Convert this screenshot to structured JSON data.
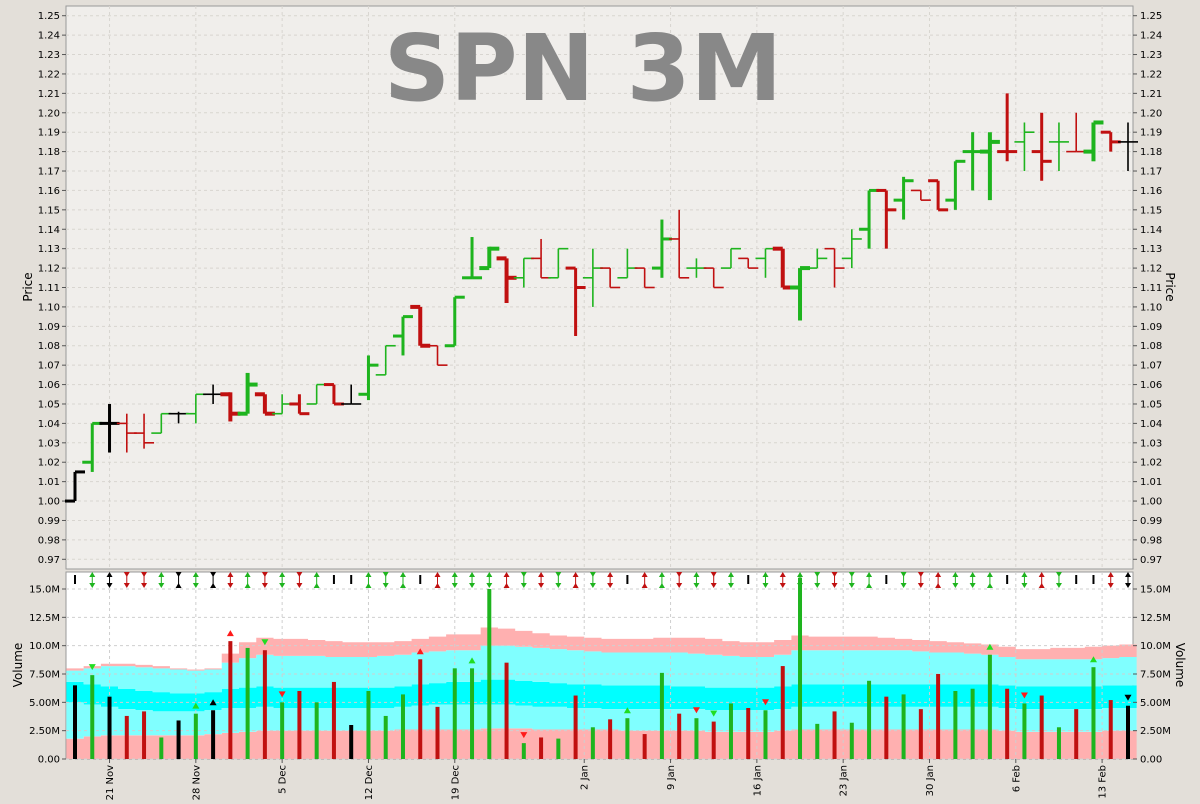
{
  "chart_data": [
    {
      "type": "ohlc",
      "title": "SPN 3M",
      "ylabel": "Price",
      "ylim": [
        0.965,
        1.255
      ],
      "yticks": [
        0.97,
        0.98,
        0.99,
        1.0,
        1.01,
        1.02,
        1.03,
        1.04,
        1.05,
        1.06,
        1.07,
        1.08,
        1.09,
        1.1,
        1.11,
        1.12,
        1.13,
        1.14,
        1.15,
        1.16,
        1.17,
        1.18,
        1.19,
        1.2,
        1.21,
        1.22,
        1.23,
        1.24,
        1.25
      ],
      "grid": true,
      "series": [
        {
          "date": "2008-11-17",
          "o": 1.0,
          "h": 1.015,
          "l": 1.0,
          "c": 1.015,
          "dir": "flat"
        },
        {
          "date": "2008-11-18",
          "o": 1.02,
          "h": 1.04,
          "l": 1.015,
          "c": 1.04,
          "dir": "up"
        },
        {
          "date": "2008-11-19",
          "o": 1.04,
          "h": 1.05,
          "l": 1.025,
          "c": 1.04,
          "dir": "flat"
        },
        {
          "date": "2008-11-20",
          "o": 1.04,
          "h": 1.045,
          "l": 1.025,
          "c": 1.035,
          "dir": "down"
        },
        {
          "date": "2008-11-21",
          "o": 1.035,
          "h": 1.045,
          "l": 1.027,
          "c": 1.03,
          "dir": "down"
        },
        {
          "date": "2008-11-24",
          "o": 1.035,
          "h": 1.045,
          "l": 1.035,
          "c": 1.045,
          "dir": "up"
        },
        {
          "date": "2008-11-25",
          "o": 1.045,
          "h": 1.046,
          "l": 1.04,
          "c": 1.045,
          "dir": "flat"
        },
        {
          "date": "2008-11-26",
          "o": 1.045,
          "h": 1.055,
          "l": 1.04,
          "c": 1.055,
          "dir": "up"
        },
        {
          "date": "2008-11-27",
          "o": 1.055,
          "h": 1.06,
          "l": 1.05,
          "c": 1.055,
          "dir": "flat"
        },
        {
          "date": "2008-11-28",
          "o": 1.055,
          "h": 1.056,
          "l": 1.041,
          "c": 1.045,
          "dir": "down"
        },
        {
          "date": "2008-12-01",
          "o": 1.045,
          "h": 1.066,
          "l": 1.045,
          "c": 1.06,
          "dir": "up"
        },
        {
          "date": "2008-12-02",
          "o": 1.055,
          "h": 1.055,
          "l": 1.045,
          "c": 1.045,
          "dir": "down"
        },
        {
          "date": "2008-12-03",
          "o": 1.045,
          "h": 1.055,
          "l": 1.045,
          "c": 1.05,
          "dir": "up"
        },
        {
          "date": "2008-12-04",
          "o": 1.05,
          "h": 1.055,
          "l": 1.045,
          "c": 1.045,
          "dir": "down"
        },
        {
          "date": "2008-12-05",
          "o": 1.05,
          "h": 1.06,
          "l": 1.05,
          "c": 1.06,
          "dir": "up"
        },
        {
          "date": "2008-12-08",
          "o": 1.06,
          "h": 1.06,
          "l": 1.05,
          "c": 1.05,
          "dir": "down"
        },
        {
          "date": "2008-12-09",
          "o": 1.05,
          "h": 1.06,
          "l": 1.05,
          "c": 1.05,
          "dir": "flat"
        },
        {
          "date": "2008-12-10",
          "o": 1.055,
          "h": 1.075,
          "l": 1.052,
          "c": 1.07,
          "dir": "up"
        },
        {
          "date": "2008-12-11",
          "o": 1.065,
          "h": 1.08,
          "l": 1.065,
          "c": 1.08,
          "dir": "up"
        },
        {
          "date": "2008-12-12",
          "o": 1.085,
          "h": 1.095,
          "l": 1.075,
          "c": 1.095,
          "dir": "up"
        },
        {
          "date": "2008-12-15",
          "o": 1.1,
          "h": 1.1,
          "l": 1.08,
          "c": 1.08,
          "dir": "down"
        },
        {
          "date": "2008-12-16",
          "o": 1.08,
          "h": 1.08,
          "l": 1.07,
          "c": 1.07,
          "dir": "down"
        },
        {
          "date": "2008-12-17",
          "o": 1.08,
          "h": 1.105,
          "l": 1.08,
          "c": 1.105,
          "dir": "up"
        },
        {
          "date": "2008-12-18",
          "o": 1.115,
          "h": 1.136,
          "l": 1.115,
          "c": 1.115,
          "dir": "up"
        },
        {
          "date": "2008-12-19",
          "o": 1.12,
          "h": 1.131,
          "l": 1.12,
          "c": 1.13,
          "dir": "up"
        },
        {
          "date": "2008-12-22",
          "o": 1.125,
          "h": 1.125,
          "l": 1.102,
          "c": 1.115,
          "dir": "down"
        },
        {
          "date": "2008-12-23",
          "o": 1.115,
          "h": 1.125,
          "l": 1.11,
          "c": 1.125,
          "dir": "up"
        },
        {
          "date": "2008-12-24",
          "o": 1.125,
          "h": 1.135,
          "l": 1.115,
          "c": 1.115,
          "dir": "down"
        },
        {
          "date": "2008-12-26",
          "o": 1.115,
          "h": 1.13,
          "l": 1.115,
          "c": 1.13,
          "dir": "up"
        },
        {
          "date": "2008-12-29",
          "o": 1.12,
          "h": 1.12,
          "l": 1.085,
          "c": 1.11,
          "dir": "down"
        },
        {
          "date": "2008-12-30",
          "o": 1.115,
          "h": 1.13,
          "l": 1.1,
          "c": 1.12,
          "dir": "up"
        },
        {
          "date": "2008-12-31",
          "o": 1.12,
          "h": 1.12,
          "l": 1.11,
          "c": 1.11,
          "dir": "down"
        },
        {
          "date": "2009-01-02",
          "o": 1.115,
          "h": 1.13,
          "l": 1.115,
          "c": 1.12,
          "dir": "up"
        },
        {
          "date": "2009-01-05",
          "o": 1.12,
          "h": 1.12,
          "l": 1.11,
          "c": 1.11,
          "dir": "down"
        },
        {
          "date": "2009-01-06",
          "o": 1.12,
          "h": 1.145,
          "l": 1.115,
          "c": 1.135,
          "dir": "up"
        },
        {
          "date": "2009-01-07",
          "o": 1.135,
          "h": 1.15,
          "l": 1.115,
          "c": 1.115,
          "dir": "down"
        },
        {
          "date": "2009-01-08",
          "o": 1.12,
          "h": 1.125,
          "l": 1.115,
          "c": 1.12,
          "dir": "up"
        },
        {
          "date": "2009-01-09",
          "o": 1.12,
          "h": 1.12,
          "l": 1.11,
          "c": 1.11,
          "dir": "down"
        },
        {
          "date": "2009-01-12",
          "o": 1.12,
          "h": 1.13,
          "l": 1.12,
          "c": 1.13,
          "dir": "up"
        },
        {
          "date": "2009-01-13",
          "o": 1.125,
          "h": 1.125,
          "l": 1.12,
          "c": 1.12,
          "dir": "down"
        },
        {
          "date": "2009-01-14",
          "o": 1.125,
          "h": 1.13,
          "l": 1.115,
          "c": 1.13,
          "dir": "up"
        },
        {
          "date": "2009-01-15",
          "o": 1.13,
          "h": 1.13,
          "l": 1.11,
          "c": 1.11,
          "dir": "down"
        },
        {
          "date": "2009-01-16",
          "o": 1.11,
          "h": 1.12,
          "l": 1.093,
          "c": 1.12,
          "dir": "up"
        },
        {
          "date": "2009-01-19",
          "o": 1.12,
          "h": 1.13,
          "l": 1.12,
          "c": 1.125,
          "dir": "up"
        },
        {
          "date": "2009-01-20",
          "o": 1.13,
          "h": 1.13,
          "l": 1.11,
          "c": 1.12,
          "dir": "down"
        },
        {
          "date": "2009-01-21",
          "o": 1.125,
          "h": 1.14,
          "l": 1.12,
          "c": 1.135,
          "dir": "up"
        },
        {
          "date": "2009-01-22",
          "o": 1.14,
          "h": 1.16,
          "l": 1.13,
          "c": 1.16,
          "dir": "up"
        },
        {
          "date": "2009-01-23",
          "o": 1.16,
          "h": 1.16,
          "l": 1.13,
          "c": 1.15,
          "dir": "down"
        },
        {
          "date": "2009-01-26",
          "o": 1.155,
          "h": 1.167,
          "l": 1.145,
          "c": 1.165,
          "dir": "up"
        },
        {
          "date": "2009-01-27",
          "o": 1.16,
          "h": 1.16,
          "l": 1.155,
          "c": 1.155,
          "dir": "down"
        },
        {
          "date": "2009-01-28",
          "o": 1.165,
          "h": 1.165,
          "l": 1.15,
          "c": 1.15,
          "dir": "down"
        },
        {
          "date": "2009-01-29",
          "o": 1.155,
          "h": 1.175,
          "l": 1.15,
          "c": 1.175,
          "dir": "up"
        },
        {
          "date": "2009-01-30",
          "o": 1.18,
          "h": 1.19,
          "l": 1.16,
          "c": 1.18,
          "dir": "up"
        },
        {
          "date": "2009-02-02",
          "o": 1.18,
          "h": 1.19,
          "l": 1.155,
          "c": 1.185,
          "dir": "up"
        },
        {
          "date": "2009-02-03",
          "o": 1.18,
          "h": 1.21,
          "l": 1.175,
          "c": 1.18,
          "dir": "down"
        },
        {
          "date": "2009-02-04",
          "o": 1.185,
          "h": 1.195,
          "l": 1.17,
          "c": 1.19,
          "dir": "up"
        },
        {
          "date": "2009-02-05",
          "o": 1.18,
          "h": 1.2,
          "l": 1.165,
          "c": 1.175,
          "dir": "down"
        },
        {
          "date": "2009-02-06",
          "o": 1.185,
          "h": 1.195,
          "l": 1.17,
          "c": 1.185,
          "dir": "up"
        },
        {
          "date": "2009-02-09",
          "o": 1.18,
          "h": 1.2,
          "l": 1.18,
          "c": 1.18,
          "dir": "down"
        },
        {
          "date": "2009-02-10",
          "o": 1.18,
          "h": 1.195,
          "l": 1.175,
          "c": 1.195,
          "dir": "up"
        },
        {
          "date": "2009-02-11",
          "o": 1.19,
          "h": 1.19,
          "l": 1.18,
          "c": 1.185,
          "dir": "down"
        },
        {
          "date": "2009-02-12",
          "o": 1.185,
          "h": 1.195,
          "l": 1.17,
          "c": 1.185,
          "dir": "flat"
        }
      ]
    },
    {
      "type": "bar",
      "ylabel": "Volume",
      "ylim": [
        0,
        16500000
      ],
      "yticks": [
        0,
        2500000,
        5000000,
        7500000,
        10000000,
        12500000,
        15000000
      ],
      "ytick_labels": [
        "0.00",
        "2.50M",
        "5.00M",
        "7.50M",
        "10.0M",
        "12.5M",
        "15.0M"
      ],
      "x_tick_labels": [
        {
          "label": "21 Nov",
          "index": 2
        },
        {
          "label": "28 Nov",
          "index": 7
        },
        {
          "label": "5 Dec",
          "index": 12
        },
        {
          "label": "12 Dec",
          "index": 17
        },
        {
          "label": "19 Dec",
          "index": 22
        },
        {
          "label": "2 Jan",
          "index": 29.5
        },
        {
          "label": "9 Jan",
          "index": 34.5
        },
        {
          "label": "16 Jan",
          "index": 39.5
        },
        {
          "label": "23 Jan",
          "index": 44.5
        },
        {
          "label": "30 Jan",
          "index": 49.5
        },
        {
          "label": "6 Feb",
          "index": 54.5
        },
        {
          "label": "13 Feb",
          "index": 59.5
        }
      ],
      "volumes": [
        6.5,
        7.4,
        5.5,
        3.8,
        4.2,
        1.9,
        3.4,
        4.0,
        4.3,
        10.4,
        9.8,
        9.6,
        5.0,
        6.0,
        5.0,
        6.8,
        3.0,
        6.0,
        3.8,
        5.7,
        8.8,
        4.6,
        8.0,
        8.0,
        15.0,
        8.5,
        1.4,
        1.9,
        1.8,
        5.6,
        2.8,
        3.5,
        3.6,
        2.2,
        7.6,
        4.0,
        3.6,
        3.3,
        4.9,
        4.5,
        4.3,
        8.2,
        16.0,
        3.1,
        4.2,
        3.2,
        6.9,
        5.5,
        5.7,
        4.4,
        7.5,
        6.0,
        6.2,
        9.2,
        6.2,
        4.9,
        5.6,
        2.8,
        4.4,
        8.1,
        5.2,
        4.7
      ],
      "band_low": [
        1.8,
        2.0,
        2.1,
        2.1,
        2.1,
        2.1,
        2.1,
        2.1,
        2.2,
        2.3,
        2.4,
        2.5,
        2.5,
        2.5,
        2.5,
        2.5,
        2.5,
        2.5,
        2.5,
        2.6,
        2.6,
        2.6,
        2.6,
        2.6,
        2.7,
        2.7,
        2.7,
        2.6,
        2.6,
        2.6,
        2.6,
        2.6,
        2.5,
        2.5,
        2.5,
        2.5,
        2.5,
        2.4,
        2.4,
        2.4,
        2.4,
        2.5,
        2.6,
        2.6,
        2.6,
        2.6,
        2.6,
        2.6,
        2.6,
        2.6,
        2.6,
        2.6,
        2.6,
        2.6,
        2.5,
        2.4,
        2.4,
        2.4,
        2.4,
        2.4,
        2.5,
        2.5
      ],
      "band_mid_low": [
        5.0,
        4.8,
        4.6,
        4.4,
        4.3,
        4.2,
        4.2,
        4.2,
        4.3,
        4.5,
        4.5,
        4.6,
        4.5,
        4.5,
        4.5,
        4.5,
        4.5,
        4.5,
        4.5,
        4.6,
        4.7,
        4.8,
        4.8,
        4.8,
        4.8,
        4.8,
        4.7,
        4.6,
        4.6,
        4.5,
        4.5,
        4.4,
        4.4,
        4.4,
        4.4,
        4.4,
        4.4,
        4.3,
        4.3,
        4.3,
        4.3,
        4.4,
        4.6,
        4.6,
        4.6,
        4.6,
        4.6,
        4.6,
        4.6,
        4.6,
        4.6,
        4.6,
        4.6,
        4.6,
        4.5,
        4.4,
        4.4,
        4.4,
        4.4,
        4.4,
        4.5,
        4.5
      ],
      "band_mid_high": [
        6.8,
        6.6,
        6.4,
        6.2,
        6.0,
        5.9,
        5.8,
        5.8,
        5.9,
        6.2,
        6.3,
        6.4,
        6.3,
        6.3,
        6.3,
        6.3,
        6.3,
        6.3,
        6.3,
        6.4,
        6.6,
        6.7,
        6.8,
        6.8,
        7.0,
        7.0,
        6.9,
        6.8,
        6.7,
        6.6,
        6.6,
        6.5,
        6.5,
        6.5,
        6.5,
        6.4,
        6.4,
        6.3,
        6.3,
        6.3,
        6.3,
        6.4,
        6.6,
        6.6,
        6.6,
        6.6,
        6.6,
        6.6,
        6.6,
        6.6,
        6.6,
        6.6,
        6.6,
        6.6,
        6.5,
        6.4,
        6.4,
        6.4,
        6.4,
        6.4,
        6.5,
        6.5
      ],
      "band_high": [
        7.8,
        8.0,
        8.2,
        8.2,
        8.1,
        8.0,
        7.9,
        7.8,
        7.9,
        8.5,
        8.9,
        9.2,
        9.1,
        9.1,
        9.1,
        9.0,
        9.0,
        9.0,
        9.1,
        9.2,
        9.4,
        9.5,
        9.6,
        9.6,
        10.0,
        10.0,
        9.9,
        9.8,
        9.7,
        9.6,
        9.5,
        9.4,
        9.4,
        9.4,
        9.4,
        9.4,
        9.3,
        9.2,
        9.1,
        9.0,
        9.0,
        9.2,
        9.6,
        9.6,
        9.6,
        9.6,
        9.6,
        9.6,
        9.6,
        9.5,
        9.4,
        9.4,
        9.3,
        9.2,
        9.0,
        8.8,
        8.8,
        8.8,
        8.8,
        8.8,
        8.9,
        9.0
      ],
      "band_top": [
        8.0,
        8.2,
        8.4,
        8.4,
        8.3,
        8.2,
        8.0,
        7.9,
        8.0,
        9.3,
        10.3,
        10.7,
        10.6,
        10.6,
        10.5,
        10.4,
        10.3,
        10.3,
        10.3,
        10.4,
        10.6,
        10.8,
        11.0,
        11.0,
        11.6,
        11.5,
        11.3,
        11.1,
        10.9,
        10.8,
        10.7,
        10.6,
        10.6,
        10.6,
        10.7,
        10.7,
        10.7,
        10.6,
        10.4,
        10.3,
        10.3,
        10.5,
        10.9,
        10.8,
        10.8,
        10.8,
        10.8,
        10.7,
        10.6,
        10.5,
        10.4,
        10.3,
        10.2,
        10.1,
        9.9,
        9.7,
        9.7,
        9.8,
        9.8,
        9.9,
        10.0,
        10.1
      ],
      "volume_markers": [
        {
          "index": 1,
          "dir": "down",
          "color": "green"
        },
        {
          "index": 7,
          "dir": "up",
          "color": "green"
        },
        {
          "index": 8,
          "dir": "up",
          "color": "black"
        },
        {
          "index": 9,
          "dir": "up",
          "color": "red"
        },
        {
          "index": 11,
          "dir": "down",
          "color": "green"
        },
        {
          "index": 12,
          "dir": "down",
          "color": "red"
        },
        {
          "index": 20,
          "dir": "up",
          "color": "red"
        },
        {
          "index": 23,
          "dir": "up",
          "color": "green"
        },
        {
          "index": 26,
          "dir": "down",
          "color": "red"
        },
        {
          "index": 32,
          "dir": "up",
          "color": "green"
        },
        {
          "index": 36,
          "dir": "down",
          "color": "red"
        },
        {
          "index": 37,
          "dir": "down",
          "color": "green"
        },
        {
          "index": 40,
          "dir": "down",
          "color": "red"
        },
        {
          "index": 53,
          "dir": "up",
          "color": "green"
        },
        {
          "index": 55,
          "dir": "down",
          "color": "red"
        },
        {
          "index": 59,
          "dir": "up",
          "color": "green"
        },
        {
          "index": 61,
          "dir": "down",
          "color": "black"
        }
      ],
      "signal_row": [
        "bar",
        "ud",
        "ud",
        "dd",
        "dd",
        "ud",
        "xx",
        "ud",
        "xx",
        "ud",
        "uu",
        "dd",
        "ud",
        "dd",
        "uu",
        "bar",
        "bar",
        "uu",
        "dd",
        "uu",
        "bar",
        "uu",
        "ud",
        "ud",
        "ud",
        "uu",
        "dd",
        "ud",
        "dd",
        "uu",
        "dd",
        "ud",
        "bar",
        "uu",
        "uu",
        "dd",
        "ud",
        "dd",
        "ud",
        "bar",
        "ud",
        "ud",
        "ud",
        "dd",
        "dd",
        "dd",
        "uu",
        "bar",
        "dd",
        "dd",
        "uu",
        "ud",
        "ud",
        "uu",
        "bar",
        "ud",
        "uu",
        "dd",
        "bar",
        "bar",
        "ud",
        "ud"
      ]
    }
  ]
}
